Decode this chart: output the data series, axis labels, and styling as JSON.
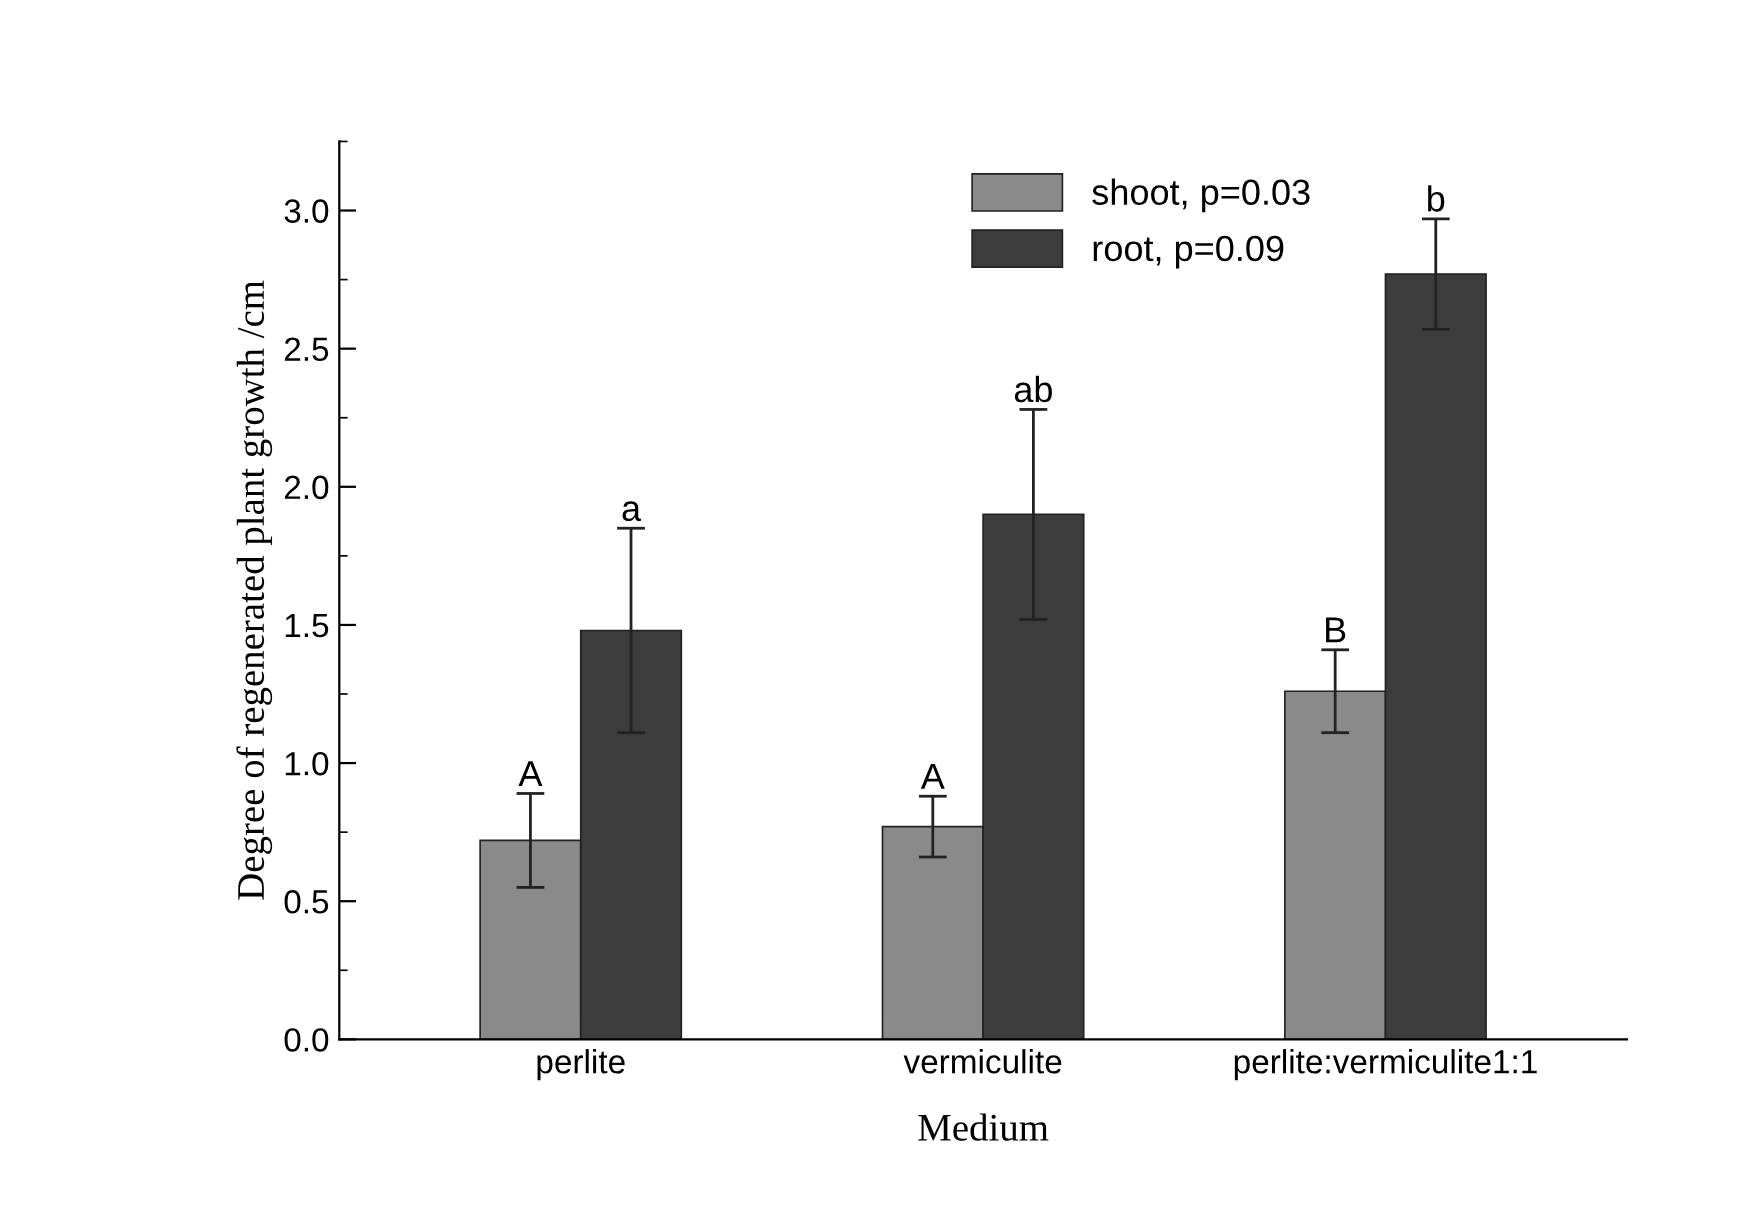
{
  "chart_data": {
    "type": "bar",
    "xlabel": "Medium",
    "ylabel": "Degree of regenerated plant growth /cm",
    "categories": [
      "perlite",
      "vermiculite",
      "perlite:vermiculite1:1"
    ],
    "series": [
      {
        "name": "shoot, p=0.03",
        "color": "#8a8a8a",
        "values": [
          0.72,
          0.77,
          1.26
        ],
        "errors": [
          [
            0.55,
            0.89
          ],
          [
            0.66,
            0.88
          ],
          [
            1.11,
            1.41
          ]
        ]
      },
      {
        "name": "root, p=0.09",
        "color": "#3c3c3c",
        "values": [
          1.48,
          1.9,
          2.77
        ],
        "errors": [
          [
            1.11,
            1.85
          ],
          [
            1.52,
            2.28
          ],
          [
            2.57,
            2.97
          ]
        ]
      }
    ],
    "annotations": [
      "A",
      "a",
      "A",
      "ab",
      "B",
      "b"
    ],
    "ylim": [
      0,
      3.25
    ],
    "yticks": [
      {
        "value": 0,
        "label": "0.0"
      },
      0.5,
      {
        "value": 1,
        "label": "1.0"
      },
      1.5,
      {
        "value": 2,
        "label": "2.0"
      },
      2.5,
      {
        "value": 3,
        "label": "3.0"
      }
    ],
    "legend": "top right",
    "grid": false
  }
}
